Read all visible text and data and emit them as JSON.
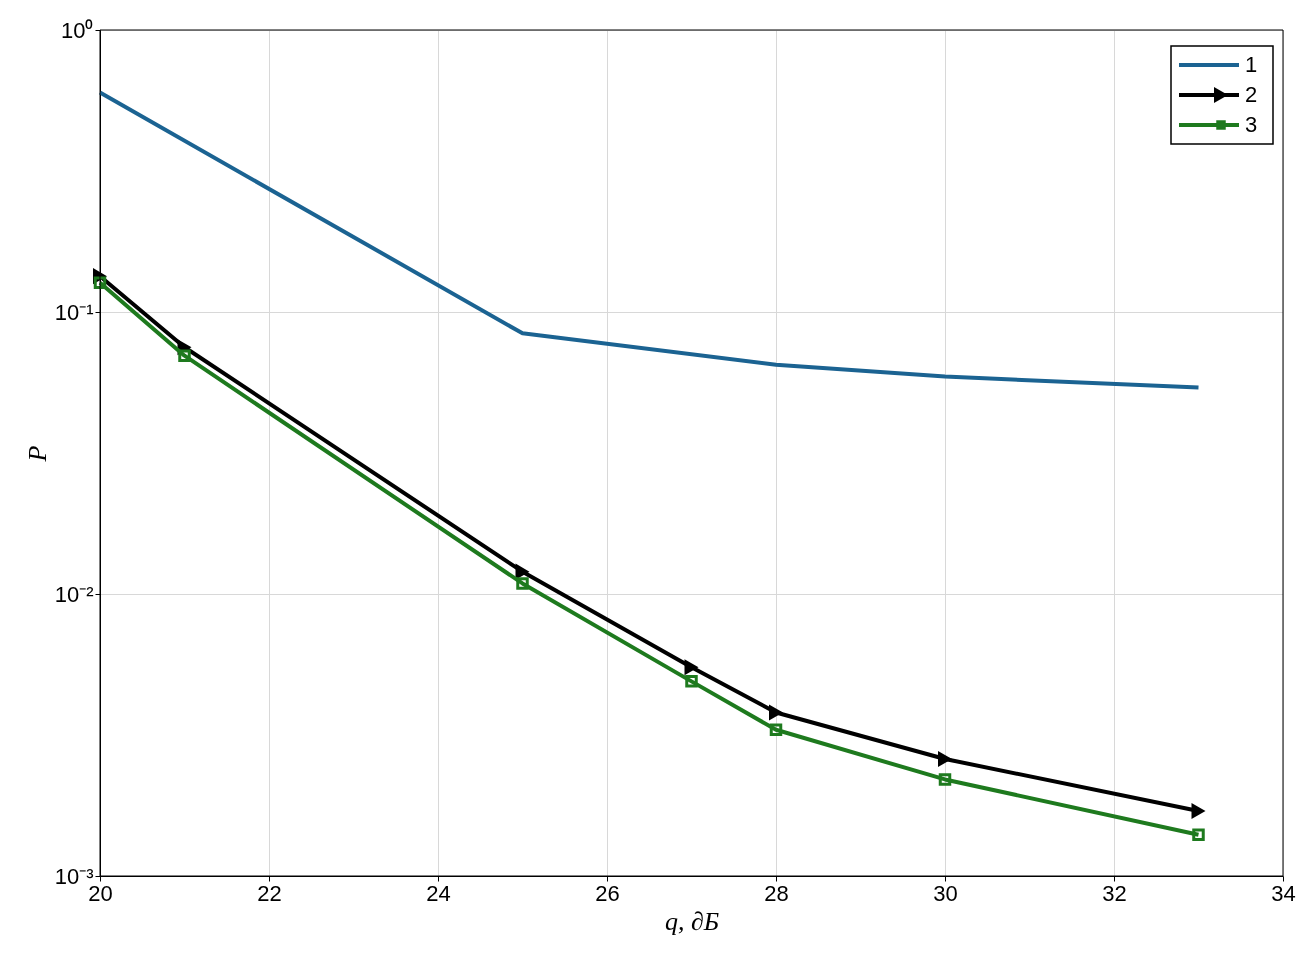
{
  "chart_data": {
    "type": "line",
    "xlabel": "q, ∂Б",
    "ylabel": "P",
    "log": "y",
    "grid": true,
    "legend": "top right",
    "line_style": "solid",
    "xlim": [
      20,
      34
    ],
    "xticks": [
      20,
      22,
      24,
      26,
      28,
      30,
      32,
      34
    ],
    "ylim": [
      0.001,
      1
    ],
    "yticks": [
      {
        "value": 0.001,
        "label": "10⁻³"
      },
      {
        "value": 0.01,
        "label": "10⁻²"
      },
      {
        "value": 0.1,
        "label": "10⁻¹"
      },
      {
        "value": 1,
        "label": "10⁰"
      }
    ],
    "series": [
      {
        "name": "1",
        "color": "#1b6392",
        "marker": "none",
        "x": [
          20,
          25,
          28,
          30,
          33
        ],
        "values": [
          0.6,
          0.084,
          0.065,
          0.059,
          0.054
        ]
      },
      {
        "name": "2",
        "color": "#000000",
        "marker": "triangle",
        "x": [
          20,
          21,
          25,
          27,
          28,
          30,
          33
        ],
        "values": [
          0.134,
          0.075,
          0.012,
          0.0055,
          0.0038,
          0.0026,
          0.0017
        ]
      },
      {
        "name": "3",
        "color": "#1e7a1e",
        "marker": "square",
        "x": [
          20,
          21,
          25,
          27,
          28,
          30,
          33
        ],
        "values": [
          0.127,
          0.07,
          0.0109,
          0.0049,
          0.0033,
          0.0022,
          0.0014
        ]
      }
    ]
  }
}
